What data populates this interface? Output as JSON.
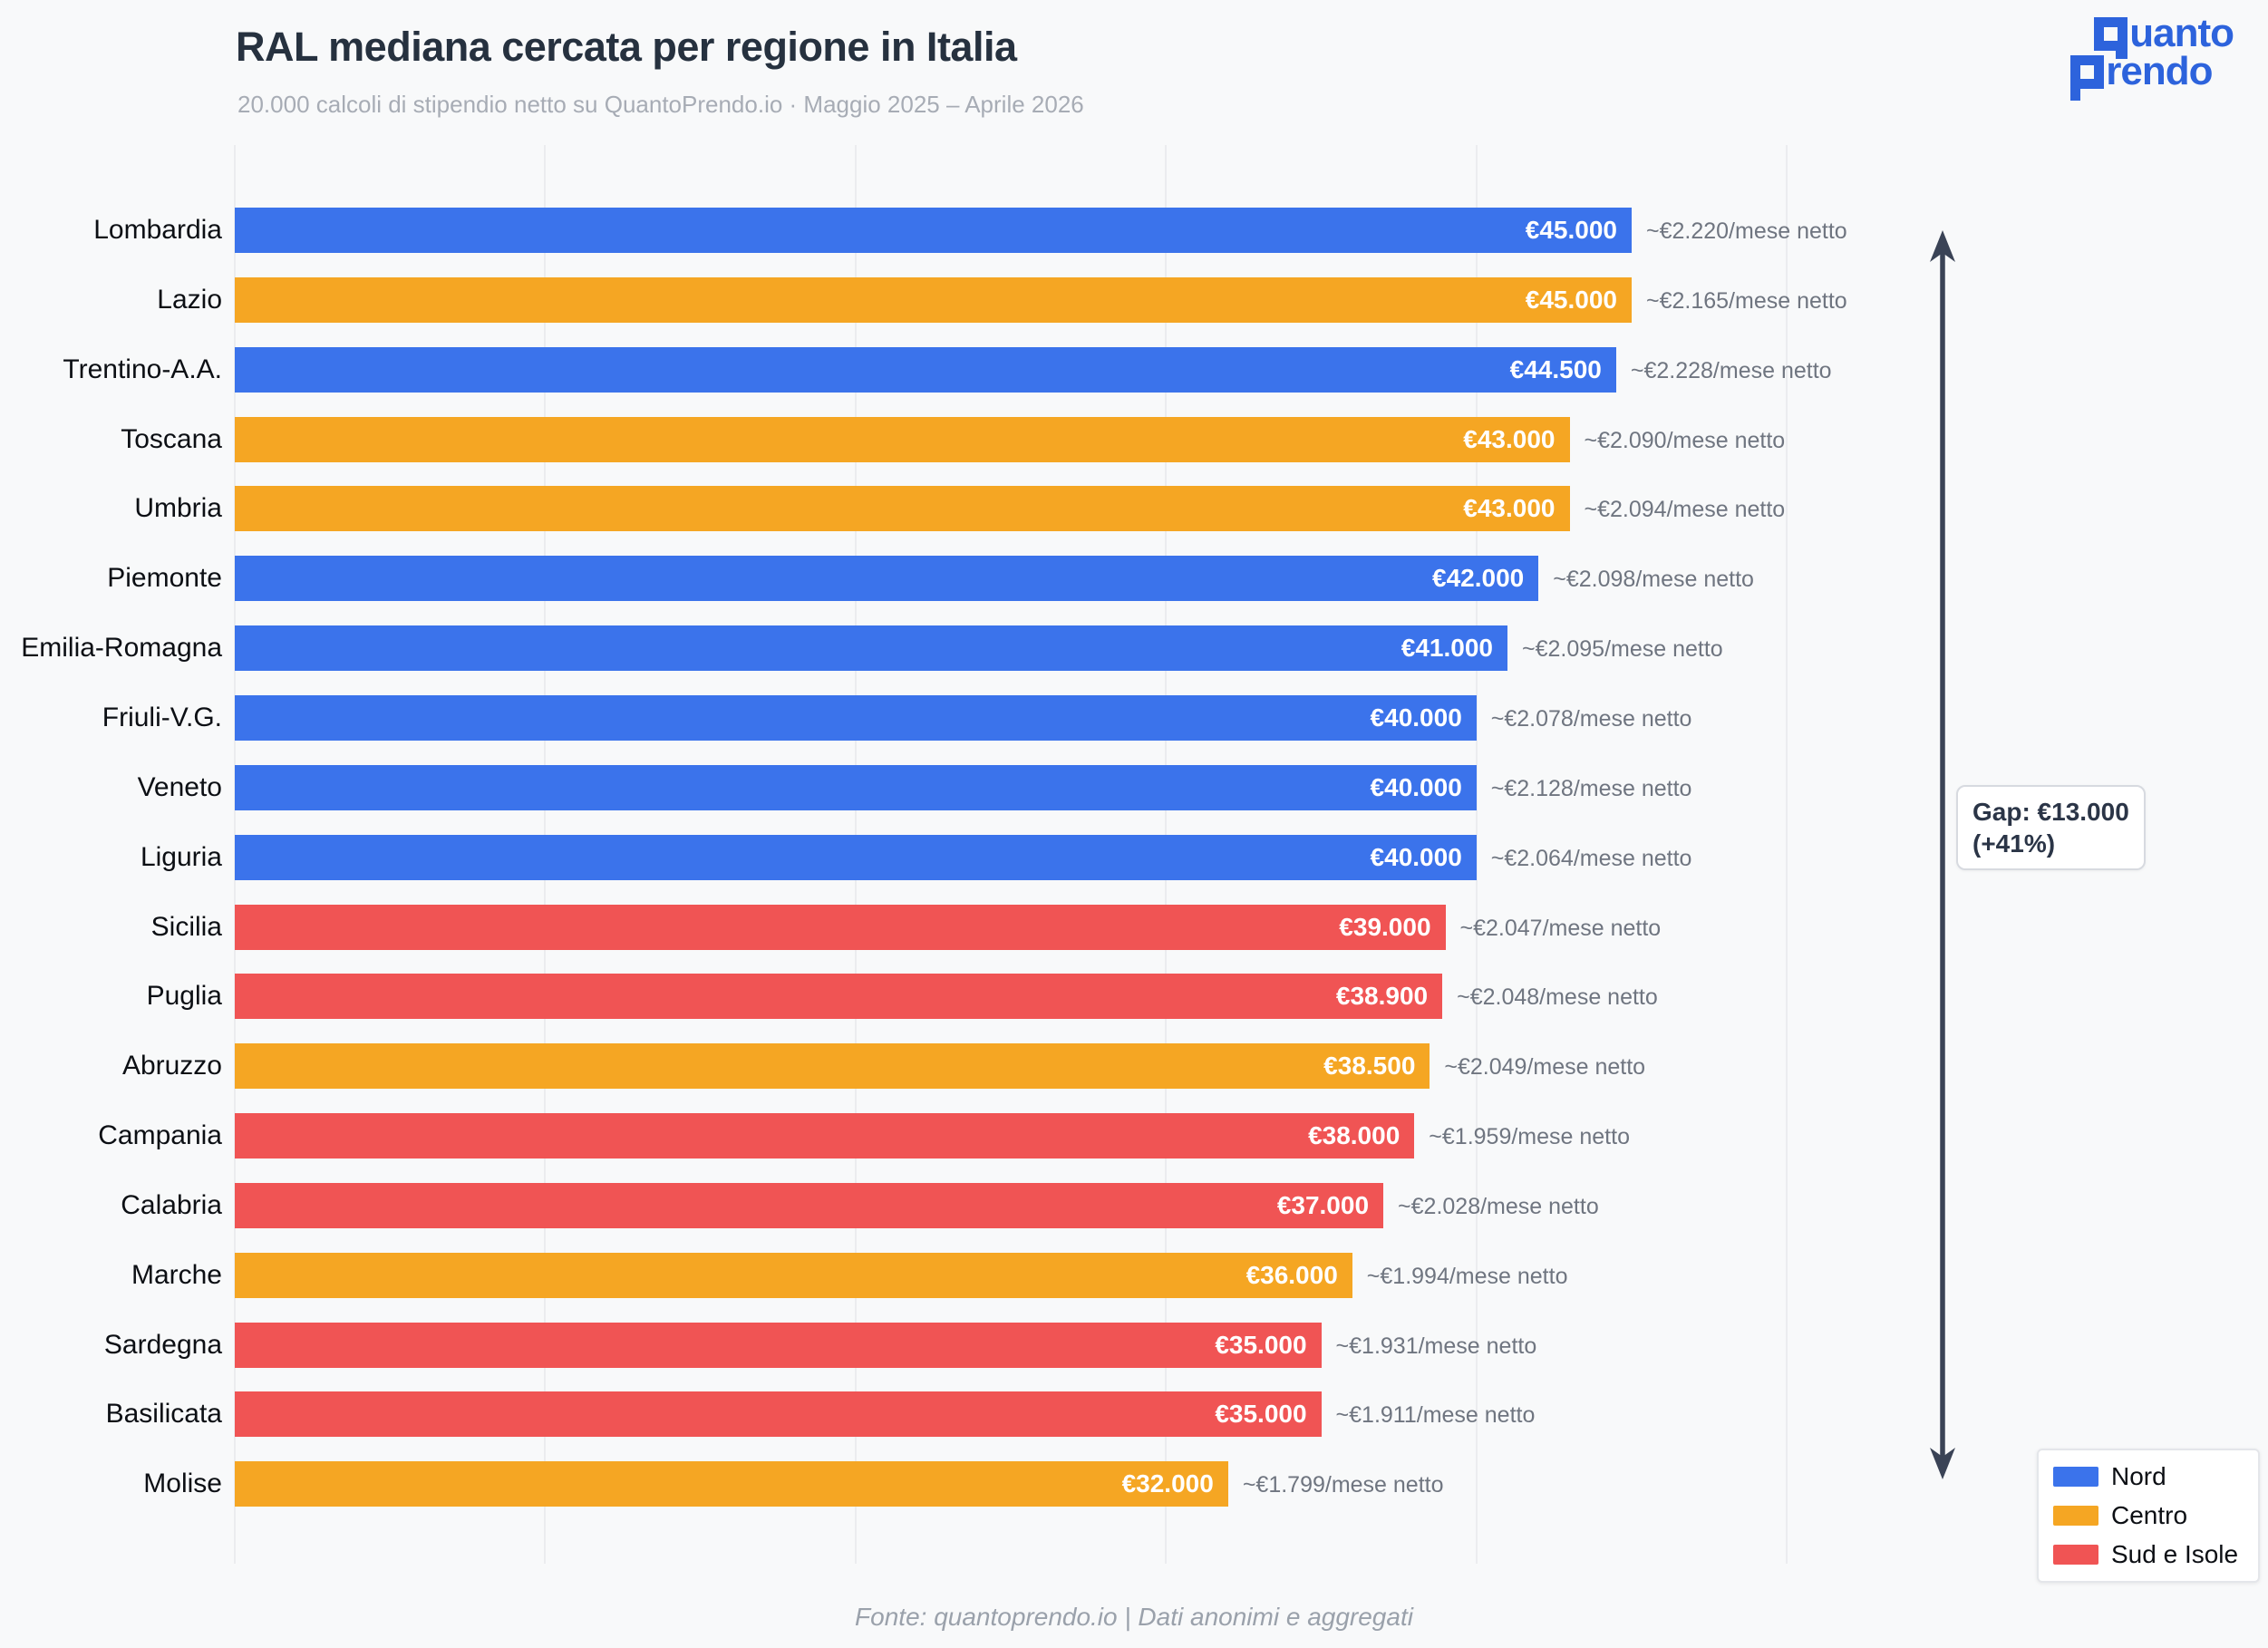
{
  "header": {
    "title": "RAL mediana cercata per regione in Italia",
    "subtitle": "20.000 calcoli di stipendio netto su QuantoPrendo.io  ·  Maggio 2025 – Aprile 2026"
  },
  "logo": {
    "line1_initial": "Q",
    "line1_rest": "uanto",
    "line2_initial": "P",
    "line2_rest": "rendo",
    "brand_color": "#2d63dc"
  },
  "chart_data": {
    "type": "bar",
    "orientation": "horizontal",
    "title": "RAL mediana cercata per regione in Italia",
    "subtitle": "20.000 calcoli di stipendio netto su QuantoPrendo.io · Maggio 2025 – Aprile 2026",
    "xlabel": "",
    "ylabel": "",
    "xlim": [
      0,
      65500
    ],
    "grid_step": 10000,
    "grid": true,
    "legend_position": "bottom-right",
    "groups": {
      "Nord": "#3b73eb",
      "Centro": "#f5a623",
      "Sud e Isole": "#f05454"
    },
    "bars": [
      {
        "region": "Lombardia",
        "group": "Nord",
        "value": 45000,
        "value_label": "€45.000",
        "net_label": "~€2.220/mese netto"
      },
      {
        "region": "Lazio",
        "group": "Centro",
        "value": 45000,
        "value_label": "€45.000",
        "net_label": "~€2.165/mese netto"
      },
      {
        "region": "Trentino-A.A.",
        "group": "Nord",
        "value": 44500,
        "value_label": "€44.500",
        "net_label": "~€2.228/mese netto"
      },
      {
        "region": "Toscana",
        "group": "Centro",
        "value": 43000,
        "value_label": "€43.000",
        "net_label": "~€2.090/mese netto"
      },
      {
        "region": "Umbria",
        "group": "Centro",
        "value": 43000,
        "value_label": "€43.000",
        "net_label": "~€2.094/mese netto"
      },
      {
        "region": "Piemonte",
        "group": "Nord",
        "value": 42000,
        "value_label": "€42.000",
        "net_label": "~€2.098/mese netto"
      },
      {
        "region": "Emilia-Romagna",
        "group": "Nord",
        "value": 41000,
        "value_label": "€41.000",
        "net_label": "~€2.095/mese netto"
      },
      {
        "region": "Friuli-V.G.",
        "group": "Nord",
        "value": 40000,
        "value_label": "€40.000",
        "net_label": "~€2.078/mese netto"
      },
      {
        "region": "Veneto",
        "group": "Nord",
        "value": 40000,
        "value_label": "€40.000",
        "net_label": "~€2.128/mese netto"
      },
      {
        "region": "Liguria",
        "group": "Nord",
        "value": 40000,
        "value_label": "€40.000",
        "net_label": "~€2.064/mese netto"
      },
      {
        "region": "Sicilia",
        "group": "Sud e Isole",
        "value": 39000,
        "value_label": "€39.000",
        "net_label": "~€2.047/mese netto"
      },
      {
        "region": "Puglia",
        "group": "Sud e Isole",
        "value": 38900,
        "value_label": "€38.900",
        "net_label": "~€2.048/mese netto"
      },
      {
        "region": "Abruzzo",
        "group": "Centro",
        "value": 38500,
        "value_label": "€38.500",
        "net_label": "~€2.049/mese netto"
      },
      {
        "region": "Campania",
        "group": "Sud e Isole",
        "value": 38000,
        "value_label": "€38.000",
        "net_label": "~€1.959/mese netto"
      },
      {
        "region": "Calabria",
        "group": "Sud e Isole",
        "value": 37000,
        "value_label": "€37.000",
        "net_label": "~€2.028/mese netto"
      },
      {
        "region": "Marche",
        "group": "Centro",
        "value": 36000,
        "value_label": "€36.000",
        "net_label": "~€1.994/mese netto"
      },
      {
        "region": "Sardegna",
        "group": "Sud e Isole",
        "value": 35000,
        "value_label": "€35.000",
        "net_label": "~€1.931/mese netto"
      },
      {
        "region": "Basilicata",
        "group": "Sud e Isole",
        "value": 35000,
        "value_label": "€35.000",
        "net_label": "~€1.911/mese netto"
      },
      {
        "region": "Molise",
        "group": "Centro",
        "value": 32000,
        "value_label": "€32.000",
        "net_label": "~€1.799/mese netto"
      }
    ],
    "annotation": {
      "line1": "Gap: €13.000",
      "line2": "(+41%)",
      "arrow_color": "#3a4356"
    }
  },
  "legend": {
    "items": [
      {
        "label": "Nord",
        "color": "#3b73eb"
      },
      {
        "label": "Centro",
        "color": "#f5a623"
      },
      {
        "label": "Sud e Isole",
        "color": "#f05454"
      }
    ]
  },
  "footer": {
    "source": "Fonte: quantoprendo.io  |  Dati anonimi e aggregati"
  }
}
